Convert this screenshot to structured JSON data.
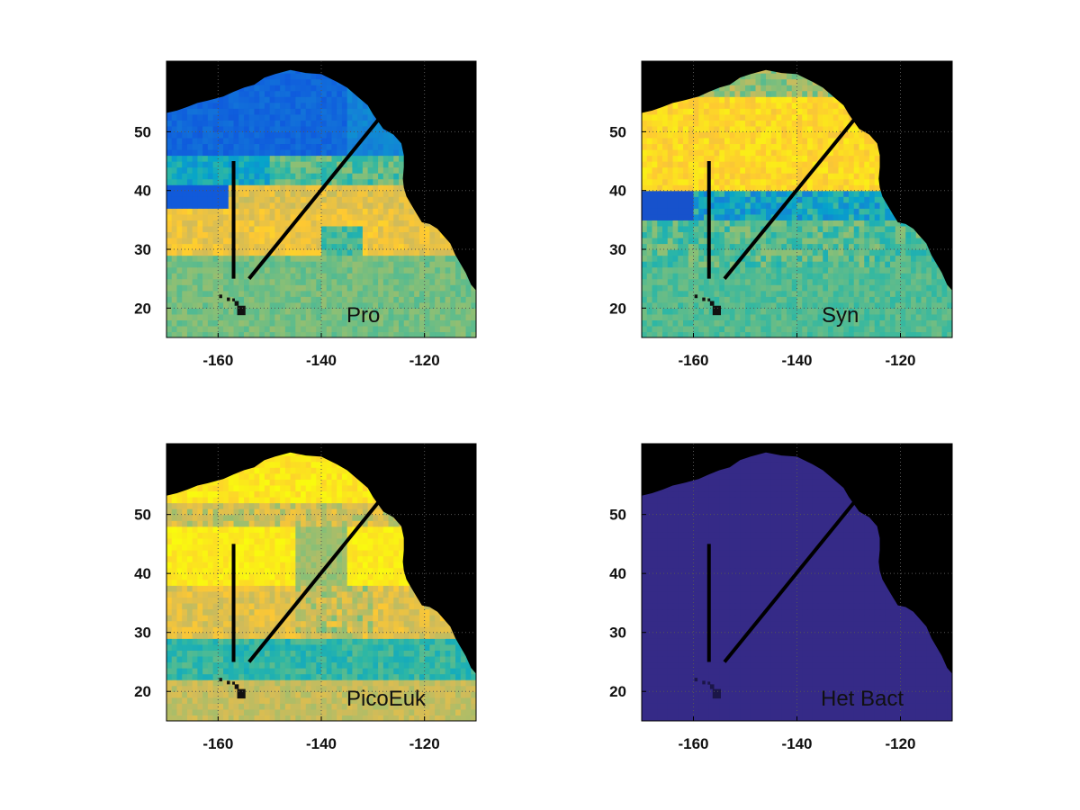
{
  "figure": {
    "colors": {
      "land": "#000000",
      "track": "#000000",
      "colormap": [
        "#352a87",
        "#0f5cdd",
        "#1481d6",
        "#06a4ca",
        "#2eb7a4",
        "#87bf77",
        "#d1bb59",
        "#fec832",
        "#f9fb0e"
      ],
      "grid": "#555555"
    },
    "panels": [
      {
        "id": "pro",
        "label": "Pro"
      },
      {
        "id": "syn",
        "label": "Syn"
      },
      {
        "id": "picoeuk",
        "label": "PicoEuk"
      },
      {
        "id": "hetbact",
        "label": "Het Bact"
      }
    ],
    "x_ticks": [
      "-160",
      "-140",
      "-120"
    ],
    "y_ticks": [
      "20",
      "30",
      "40",
      "50"
    ]
  },
  "chart_data": [
    {
      "type": "heatmap",
      "title": "Pro",
      "xlim": [
        -170,
        -110
      ],
      "ylim": [
        15,
        62
      ],
      "x_ticks": [
        -160,
        -140,
        -120
      ],
      "y_ticks": [
        20,
        30,
        40,
        50
      ],
      "grid": true,
      "tracks": [
        {
          "x": [
            -157,
            -157
          ],
          "y": [
            25,
            45
          ]
        },
        {
          "x": [
            -154,
            -129
          ],
          "y": [
            25,
            52
          ]
        }
      ],
      "pattern": "low (blue) north of ~42N, high (yellow/orange) band 30-40N, moderate green south"
    },
    {
      "type": "heatmap",
      "title": "Syn",
      "xlim": [
        -170,
        -110
      ],
      "ylim": [
        15,
        62
      ],
      "x_ticks": [
        -160,
        -140,
        -120
      ],
      "y_ticks": [
        20,
        30,
        40,
        50
      ],
      "grid": true,
      "tracks": [
        {
          "x": [
            -157,
            -157
          ],
          "y": [
            25,
            45
          ]
        },
        {
          "x": [
            -154,
            -129
          ],
          "y": [
            25,
            52
          ]
        }
      ],
      "pattern": "high (yellow) 40-52N, blue band near 36-38N, green-teal south"
    },
    {
      "type": "heatmap",
      "title": "PicoEuk",
      "xlim": [
        -170,
        -110
      ],
      "ylim": [
        15,
        62
      ],
      "x_ticks": [
        -160,
        -140,
        -120
      ],
      "y_ticks": [
        20,
        30,
        40,
        50
      ],
      "grid": true,
      "tracks": [
        {
          "x": [
            -157,
            -157
          ],
          "y": [
            25,
            45
          ]
        },
        {
          "x": [
            -154,
            -129
          ],
          "y": [
            25,
            52
          ]
        }
      ],
      "pattern": "high (yellow) north and 40-48N, teal band near 24-28N, orange elsewhere"
    },
    {
      "type": "heatmap",
      "title": "Het Bact",
      "xlim": [
        -170,
        -110
      ],
      "ylim": [
        15,
        62
      ],
      "x_ticks": [
        -160,
        -140,
        -120
      ],
      "y_ticks": [
        20,
        30,
        40,
        50
      ],
      "grid": true,
      "tracks": [
        {
          "x": [
            -157,
            -157
          ],
          "y": [
            25,
            45
          ]
        },
        {
          "x": [
            -154,
            -129
          ],
          "y": [
            25,
            52
          ]
        }
      ],
      "pattern": "uniform (dark blue) everywhere"
    }
  ]
}
